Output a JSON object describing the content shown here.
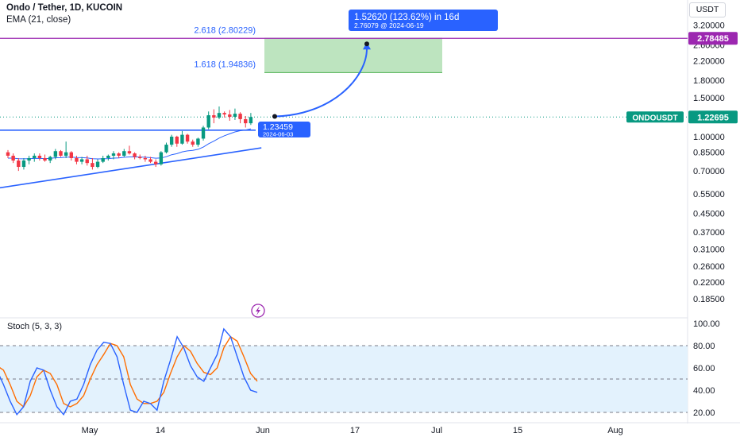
{
  "header": {
    "title": "Ondo / Tether, 1D, KUCOIN",
    "indicator": "EMA (21, close)",
    "currency": "USDT"
  },
  "colors": {
    "up": "#089981",
    "down": "#f23645",
    "ema": "#2962ff",
    "trendline": "#2962ff",
    "fib": "#9c27b0",
    "target_zone": "#b2dfb4",
    "current_price": "#089981",
    "stoch_k": "#2962ff",
    "stoch_d": "#ff6d00",
    "stoch_band": "#e3f2fd"
  },
  "chart_data": [
    {
      "type": "candlestick",
      "symbol": "ONDOUSDT",
      "scale": "log",
      "y_ticks": [
        3.2,
        2.6,
        2.2,
        1.8,
        1.5,
        1.0,
        0.85,
        0.7,
        0.55,
        0.45,
        0.37,
        0.31,
        0.26,
        0.22,
        0.185
      ],
      "y_tick_labels": [
        "3.20000",
        "2.60000",
        "2.20000",
        "1.80000",
        "1.50000",
        "1.00000",
        "0.85000",
        "0.70000",
        "0.55000",
        "0.45000",
        "0.37000",
        "0.31000",
        "0.26000",
        "0.22000",
        "0.18500"
      ],
      "x_ticks": [
        "2024-05-01",
        "2024-05-14",
        "2024-06-01",
        "2024-06-17",
        "2024-07-01",
        "2024-07-15",
        "2024-08-01"
      ],
      "x_tick_labels": [
        "May",
        "14",
        "Jun",
        "17",
        "Jul",
        "15",
        "Aug"
      ],
      "candles": [
        {
          "o": 0.85,
          "h": 0.87,
          "l": 0.8,
          "c": 0.82
        },
        {
          "o": 0.82,
          "h": 0.84,
          "l": 0.76,
          "c": 0.78
        },
        {
          "o": 0.78,
          "h": 0.8,
          "l": 0.7,
          "c": 0.73
        },
        {
          "o": 0.73,
          "h": 0.8,
          "l": 0.71,
          "c": 0.78
        },
        {
          "o": 0.78,
          "h": 0.82,
          "l": 0.75,
          "c": 0.8
        },
        {
          "o": 0.8,
          "h": 0.84,
          "l": 0.77,
          "c": 0.82
        },
        {
          "o": 0.82,
          "h": 0.84,
          "l": 0.78,
          "c": 0.8
        },
        {
          "o": 0.8,
          "h": 0.83,
          "l": 0.77,
          "c": 0.78
        },
        {
          "o": 0.78,
          "h": 0.82,
          "l": 0.76,
          "c": 0.81
        },
        {
          "o": 0.81,
          "h": 0.88,
          "l": 0.79,
          "c": 0.86
        },
        {
          "o": 0.86,
          "h": 0.87,
          "l": 0.81,
          "c": 0.82
        },
        {
          "o": 0.82,
          "h": 0.95,
          "l": 0.8,
          "c": 0.85
        },
        {
          "o": 0.85,
          "h": 0.86,
          "l": 0.78,
          "c": 0.8
        },
        {
          "o": 0.8,
          "h": 0.82,
          "l": 0.75,
          "c": 0.77
        },
        {
          "o": 0.77,
          "h": 0.81,
          "l": 0.75,
          "c": 0.79
        },
        {
          "o": 0.79,
          "h": 0.82,
          "l": 0.74,
          "c": 0.76
        },
        {
          "o": 0.76,
          "h": 0.8,
          "l": 0.71,
          "c": 0.73
        },
        {
          "o": 0.73,
          "h": 0.79,
          "l": 0.72,
          "c": 0.77
        },
        {
          "o": 0.77,
          "h": 0.82,
          "l": 0.76,
          "c": 0.8
        },
        {
          "o": 0.8,
          "h": 0.83,
          "l": 0.78,
          "c": 0.82
        },
        {
          "o": 0.82,
          "h": 0.86,
          "l": 0.79,
          "c": 0.84
        },
        {
          "o": 0.84,
          "h": 0.85,
          "l": 0.8,
          "c": 0.82
        },
        {
          "o": 0.82,
          "h": 0.88,
          "l": 0.81,
          "c": 0.86
        },
        {
          "o": 0.86,
          "h": 0.91,
          "l": 0.83,
          "c": 0.84
        },
        {
          "o": 0.84,
          "h": 0.85,
          "l": 0.79,
          "c": 0.81
        },
        {
          "o": 0.81,
          "h": 0.83,
          "l": 0.79,
          "c": 0.8
        },
        {
          "o": 0.8,
          "h": 0.82,
          "l": 0.77,
          "c": 0.79
        },
        {
          "o": 0.79,
          "h": 0.81,
          "l": 0.76,
          "c": 0.77
        },
        {
          "o": 0.77,
          "h": 0.79,
          "l": 0.73,
          "c": 0.75
        },
        {
          "o": 0.75,
          "h": 0.86,
          "l": 0.74,
          "c": 0.85
        },
        {
          "o": 0.85,
          "h": 0.94,
          "l": 0.84,
          "c": 0.92
        },
        {
          "o": 0.92,
          "h": 1.02,
          "l": 0.9,
          "c": 1.0
        },
        {
          "o": 1.0,
          "h": 1.01,
          "l": 0.9,
          "c": 0.93
        },
        {
          "o": 0.93,
          "h": 1.06,
          "l": 0.92,
          "c": 1.02
        },
        {
          "o": 1.02,
          "h": 1.03,
          "l": 0.93,
          "c": 0.95
        },
        {
          "o": 0.95,
          "h": 0.97,
          "l": 0.9,
          "c": 0.92
        },
        {
          "o": 0.92,
          "h": 0.99,
          "l": 0.9,
          "c": 0.98
        },
        {
          "o": 0.98,
          "h": 1.12,
          "l": 0.96,
          "c": 1.1
        },
        {
          "o": 1.1,
          "h": 1.3,
          "l": 1.08,
          "c": 1.25
        },
        {
          "o": 1.25,
          "h": 1.33,
          "l": 1.15,
          "c": 1.22
        },
        {
          "o": 1.22,
          "h": 1.37,
          "l": 1.2,
          "c": 1.28
        },
        {
          "o": 1.28,
          "h": 1.3,
          "l": 1.22,
          "c": 1.26
        },
        {
          "o": 1.26,
          "h": 1.32,
          "l": 1.18,
          "c": 1.23
        },
        {
          "o": 1.23,
          "h": 1.34,
          "l": 1.19,
          "c": 1.27
        },
        {
          "o": 1.27,
          "h": 1.29,
          "l": 1.15,
          "c": 1.2
        },
        {
          "o": 1.2,
          "h": 1.24,
          "l": 1.1,
          "c": 1.15
        },
        {
          "o": 1.15,
          "h": 1.28,
          "l": 1.13,
          "c": 1.22695
        }
      ],
      "ema": [
        0.8,
        0.8,
        0.795,
        0.794,
        0.795,
        0.797,
        0.797,
        0.796,
        0.797,
        0.803,
        0.804,
        0.808,
        0.808,
        0.805,
        0.804,
        0.801,
        0.795,
        0.793,
        0.794,
        0.796,
        0.8,
        0.802,
        0.807,
        0.81,
        0.81,
        0.809,
        0.807,
        0.804,
        0.799,
        0.801,
        0.812,
        0.829,
        0.838,
        0.854,
        0.862,
        0.867,
        0.877,
        0.897,
        0.929,
        0.955,
        0.985,
        1.01,
        1.03,
        1.051,
        1.064,
        1.072,
        1.085
      ],
      "current_price_label": "ONDOUSDT",
      "current_price": "1.22695",
      "fib_levels": [
        {
          "label": "2.618 (2.80229)",
          "value": 2.80229
        },
        {
          "label": "1.618 (1.94836)",
          "value": 1.94836
        }
      ],
      "target_price_label": "2.78485",
      "target_price": 2.78485,
      "projection": {
        "from_price_label": "1.23459",
        "from_date_label": "2024-06-03",
        "from_value": 1.23459,
        "to_value": 2.76079,
        "summary": "1.52620 (123.62%) in 16d",
        "detail": "2.76079 @ 2024-06-19"
      },
      "resistance_line": 1.07,
      "trendline": [
        {
          "idx": -3,
          "value": 0.58
        },
        {
          "idx": 48,
          "value": 0.89
        }
      ]
    },
    {
      "type": "line",
      "name": "Stoch (5, 3, 3)",
      "y_ticks": [
        100,
        80,
        60,
        40,
        20
      ],
      "y_tick_labels": [
        "100.00",
        "80.00",
        "60.00",
        "40.00",
        "20.00"
      ],
      "band": [
        20,
        80
      ],
      "mid_line": 50,
      "k": [
        58,
        45,
        30,
        18,
        25,
        48,
        60,
        58,
        40,
        25,
        18,
        30,
        32,
        45,
        63,
        76,
        83,
        82,
        70,
        45,
        22,
        20,
        30,
        28,
        22,
        48,
        67,
        88,
        78,
        62,
        52,
        48,
        60,
        72,
        95,
        88,
        70,
        52,
        40,
        38
      ],
      "d": [
        62,
        58,
        45,
        30,
        25,
        35,
        52,
        58,
        55,
        45,
        28,
        25,
        28,
        35,
        50,
        63,
        72,
        82,
        80,
        70,
        45,
        32,
        28,
        28,
        30,
        38,
        55,
        70,
        80,
        75,
        64,
        56,
        54,
        60,
        78,
        88,
        84,
        70,
        55,
        48
      ]
    }
  ],
  "footer": {
    "flash_icon": "lightning-icon"
  }
}
